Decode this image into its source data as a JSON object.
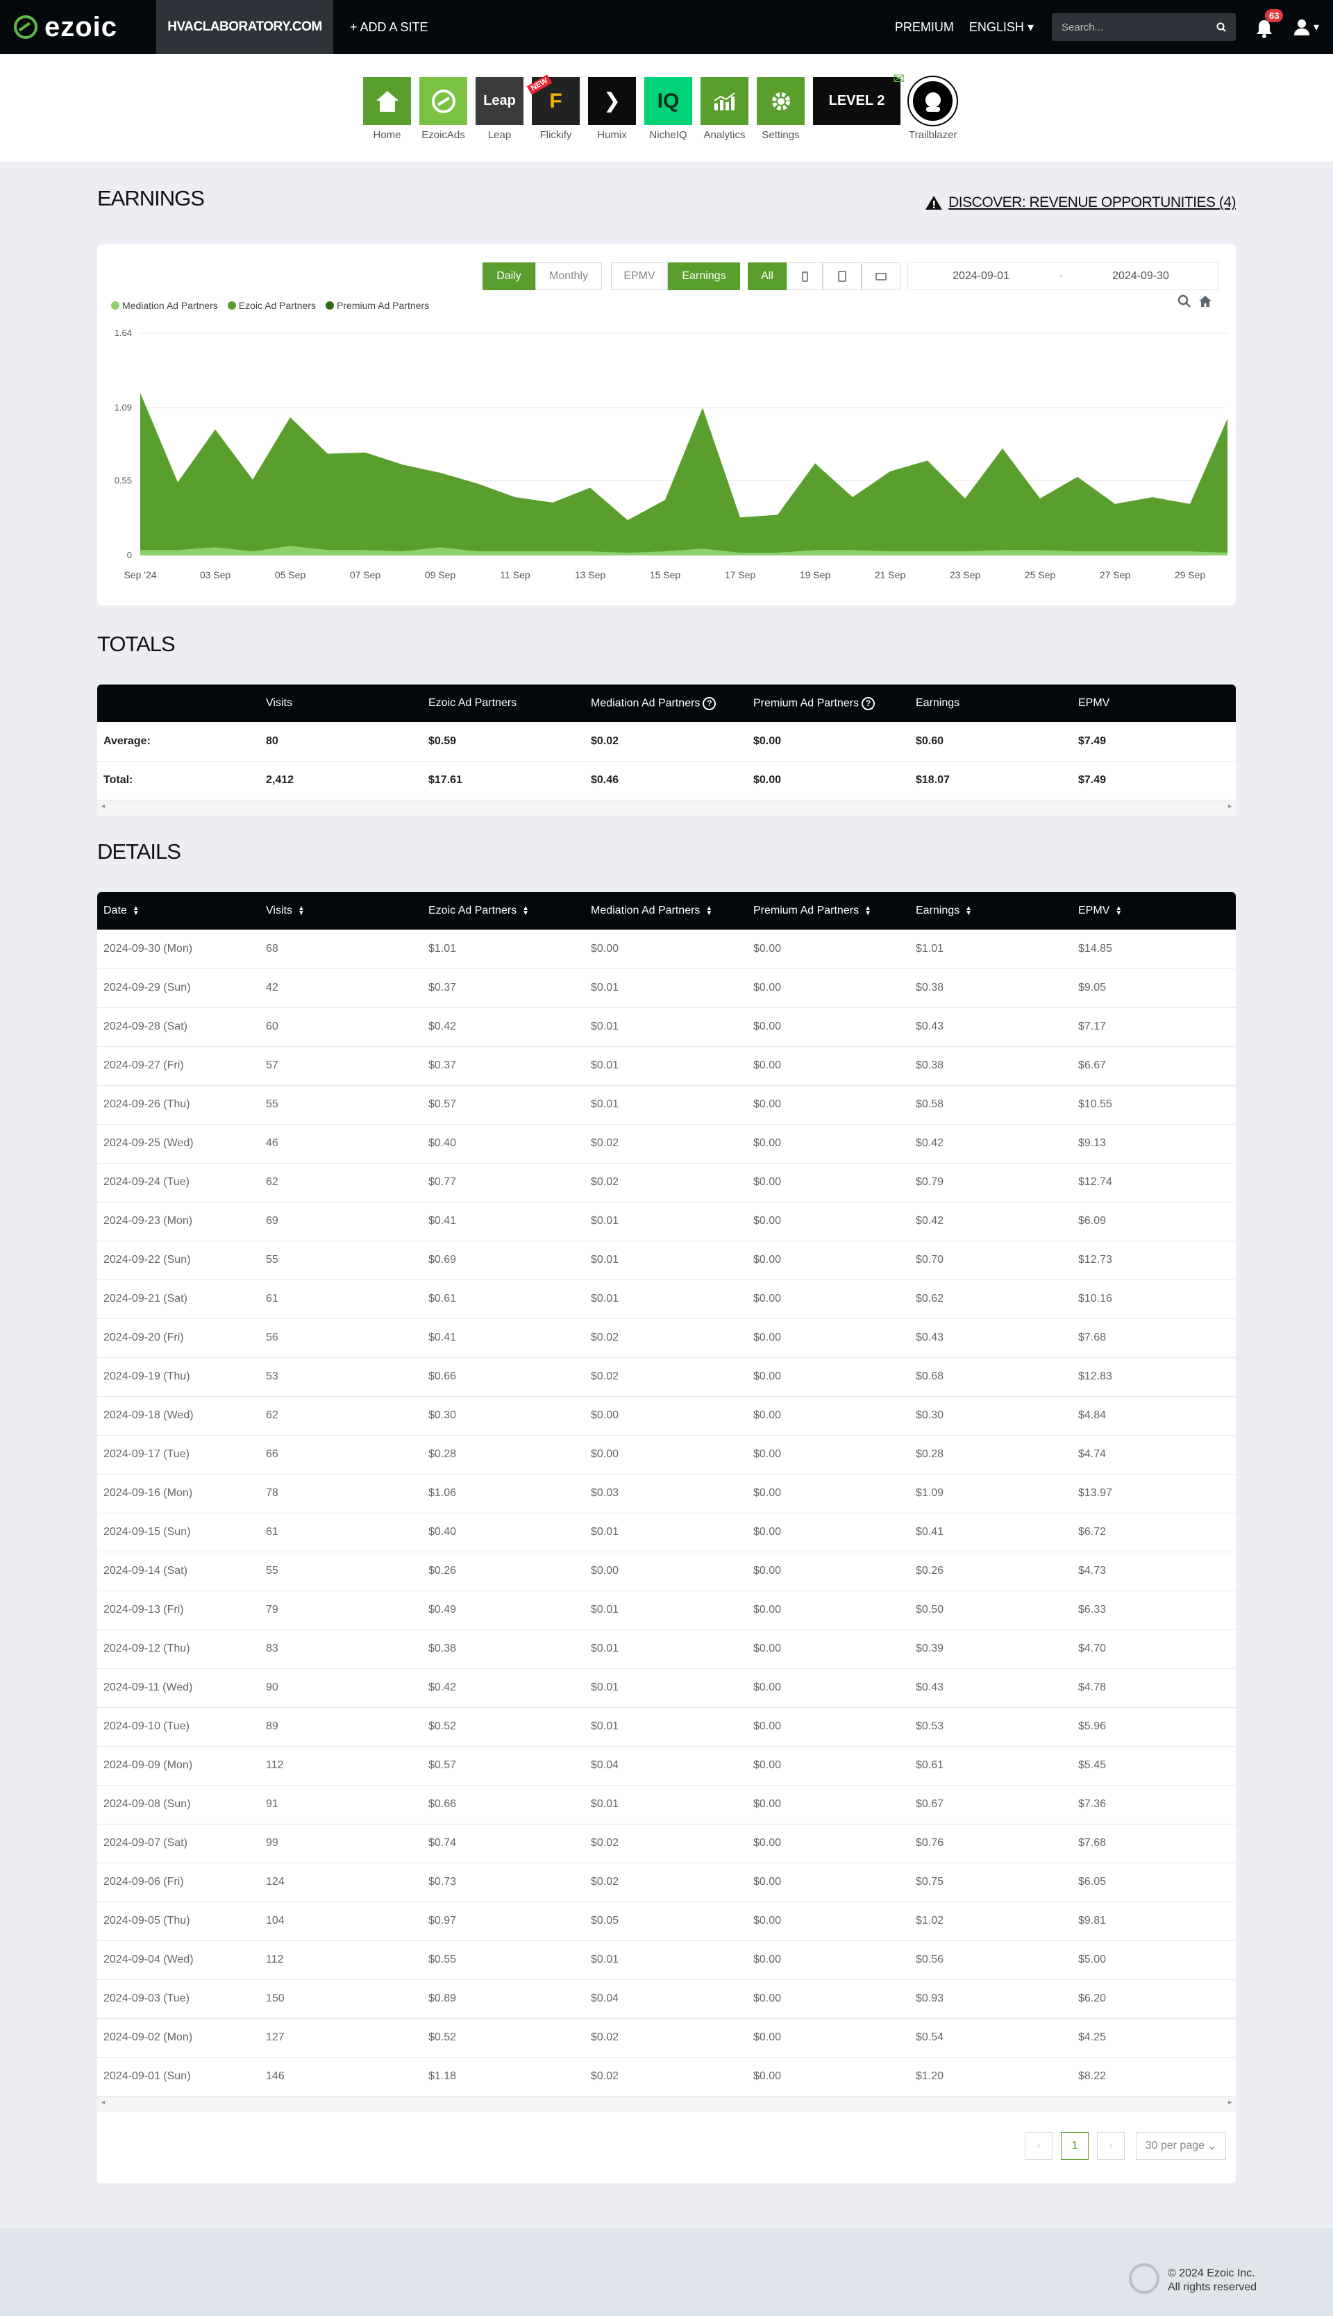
{
  "brand": {
    "name": "ezoic"
  },
  "site": "HVACLABORATORY.COM",
  "add_site": "+ ADD A SITE",
  "nav": {
    "premium": "PREMIUM",
    "language": "ENGLISH",
    "search_placeholder": "Search...",
    "notifications": "63"
  },
  "apps": [
    {
      "label": "Home",
      "color": "#5a9e2d"
    },
    {
      "label": "EzoicAds",
      "color": "#7cc242"
    },
    {
      "label": "Leap",
      "color": "#3b3b3b",
      "glyph": "Leap"
    },
    {
      "label": "Flickify",
      "color": "#222",
      "glyph": "F",
      "badge": "NEW"
    },
    {
      "label": "Humix",
      "color": "#0c0c0c",
      "glyph": "❯"
    },
    {
      "label": "NicheIQ",
      "color": "#00d277",
      "glyph": "IQ"
    },
    {
      "label": "Analytics",
      "color": "#5a9e2d"
    },
    {
      "label": "Settings",
      "color": "#5a9e2d"
    },
    {
      "label": "",
      "color": "#0c0c0c",
      "glyph": "LEVEL 2"
    },
    {
      "label": "Trailblazer",
      "color": "#fff"
    }
  ],
  "earnings": {
    "title": "EARNINGS",
    "discover": "DISCOVER: REVENUE OPPORTUNITIES (4)",
    "period_buttons": [
      "Daily",
      "Monthly"
    ],
    "metric_buttons": [
      "EPMV",
      "Earnings"
    ],
    "device_buttons": [
      "All"
    ],
    "date_from": "2024-09-01",
    "date_sep": "-",
    "date_to": "2024-09-30",
    "legend": [
      {
        "name": "Mediation Ad Partners",
        "color": "#8fcf6b"
      },
      {
        "name": "Ezoic Ad Partners",
        "color": "#5a9e2d"
      },
      {
        "name": "Premium Ad Partners",
        "color": "#2f6b1a"
      }
    ]
  },
  "chart_data": {
    "type": "area",
    "ylim": [
      0,
      1.64
    ],
    "yticks": [
      "1.64",
      "1.09",
      "0.55",
      "0"
    ],
    "xticks": [
      "Sep '24",
      "03 Sep",
      "05 Sep",
      "07 Sep",
      "09 Sep",
      "11 Sep",
      "13 Sep",
      "15 Sep",
      "17 Sep",
      "19 Sep",
      "21 Sep",
      "23 Sep",
      "25 Sep",
      "27 Sep",
      "29 Sep"
    ],
    "x": [
      "2024-09-01",
      "2024-09-02",
      "2024-09-03",
      "2024-09-04",
      "2024-09-05",
      "2024-09-06",
      "2024-09-07",
      "2024-09-08",
      "2024-09-09",
      "2024-09-10",
      "2024-09-11",
      "2024-09-12",
      "2024-09-13",
      "2024-09-14",
      "2024-09-15",
      "2024-09-16",
      "2024-09-17",
      "2024-09-18",
      "2024-09-19",
      "2024-09-20",
      "2024-09-21",
      "2024-09-22",
      "2024-09-23",
      "2024-09-24",
      "2024-09-25",
      "2024-09-26",
      "2024-09-27",
      "2024-09-28",
      "2024-09-29",
      "2024-09-30"
    ],
    "series": [
      {
        "name": "Ezoic Ad Partners",
        "values": [
          1.18,
          0.52,
          0.89,
          0.55,
          0.97,
          0.73,
          0.74,
          0.66,
          0.57,
          0.52,
          0.42,
          0.38,
          0.49,
          0.26,
          0.4,
          1.06,
          0.28,
          0.3,
          0.66,
          0.41,
          0.61,
          0.69,
          0.41,
          0.77,
          0.4,
          0.57,
          0.37,
          0.42,
          0.37,
          1.01
        ]
      },
      {
        "name": "Mediation Ad Partners",
        "values": [
          0.02,
          0.02,
          0.04,
          0.01,
          0.05,
          0.02,
          0.02,
          0.01,
          0.04,
          0.01,
          0.01,
          0.01,
          0.01,
          0.0,
          0.01,
          0.03,
          0.0,
          0.0,
          0.02,
          0.02,
          0.01,
          0.01,
          0.01,
          0.02,
          0.02,
          0.01,
          0.01,
          0.01,
          0.01,
          0.0
        ]
      },
      {
        "name": "Premium Ad Partners",
        "values": [
          0,
          0,
          0,
          0,
          0,
          0,
          0,
          0,
          0,
          0,
          0,
          0,
          0,
          0,
          0,
          0,
          0,
          0,
          0,
          0,
          0,
          0,
          0,
          0,
          0,
          0,
          0,
          0,
          0,
          0
        ]
      }
    ]
  },
  "totals": {
    "title": "TOTALS",
    "headers": [
      "",
      "Visits",
      "Ezoic Ad Partners",
      "Mediation Ad Partners",
      "Premium Ad Partners",
      "Earnings",
      "EPMV"
    ],
    "rows": [
      [
        "Average:",
        "80",
        "$0.59",
        "$0.02",
        "$0.00",
        "$0.60",
        "$7.49"
      ],
      [
        "Total:",
        "2,412",
        "$17.61",
        "$0.46",
        "$0.00",
        "$18.07",
        "$7.49"
      ]
    ]
  },
  "details": {
    "title": "DETAILS",
    "headers": [
      "Date",
      "Visits",
      "Ezoic Ad Partners",
      "Mediation Ad Partners",
      "Premium Ad Partners",
      "Earnings",
      "EPMV"
    ],
    "rows": [
      [
        "2024-09-30 (Mon)",
        "68",
        "$1.01",
        "$0.00",
        "$0.00",
        "$1.01",
        "$14.85"
      ],
      [
        "2024-09-29 (Sun)",
        "42",
        "$0.37",
        "$0.01",
        "$0.00",
        "$0.38",
        "$9.05"
      ],
      [
        "2024-09-28 (Sat)",
        "60",
        "$0.42",
        "$0.01",
        "$0.00",
        "$0.43",
        "$7.17"
      ],
      [
        "2024-09-27 (Fri)",
        "57",
        "$0.37",
        "$0.01",
        "$0.00",
        "$0.38",
        "$6.67"
      ],
      [
        "2024-09-26 (Thu)",
        "55",
        "$0.57",
        "$0.01",
        "$0.00",
        "$0.58",
        "$10.55"
      ],
      [
        "2024-09-25 (Wed)",
        "46",
        "$0.40",
        "$0.02",
        "$0.00",
        "$0.42",
        "$9.13"
      ],
      [
        "2024-09-24 (Tue)",
        "62",
        "$0.77",
        "$0.02",
        "$0.00",
        "$0.79",
        "$12.74"
      ],
      [
        "2024-09-23 (Mon)",
        "69",
        "$0.41",
        "$0.01",
        "$0.00",
        "$0.42",
        "$6.09"
      ],
      [
        "2024-09-22 (Sun)",
        "55",
        "$0.69",
        "$0.01",
        "$0.00",
        "$0.70",
        "$12.73"
      ],
      [
        "2024-09-21 (Sat)",
        "61",
        "$0.61",
        "$0.01",
        "$0.00",
        "$0.62",
        "$10.16"
      ],
      [
        "2024-09-20 (Fri)",
        "56",
        "$0.41",
        "$0.02",
        "$0.00",
        "$0.43",
        "$7.68"
      ],
      [
        "2024-09-19 (Thu)",
        "53",
        "$0.66",
        "$0.02",
        "$0.00",
        "$0.68",
        "$12.83"
      ],
      [
        "2024-09-18 (Wed)",
        "62",
        "$0.30",
        "$0.00",
        "$0.00",
        "$0.30",
        "$4.84"
      ],
      [
        "2024-09-17 (Tue)",
        "66",
        "$0.28",
        "$0.00",
        "$0.00",
        "$0.28",
        "$4.74"
      ],
      [
        "2024-09-16 (Mon)",
        "78",
        "$1.06",
        "$0.03",
        "$0.00",
        "$1.09",
        "$13.97"
      ],
      [
        "2024-09-15 (Sun)",
        "61",
        "$0.40",
        "$0.01",
        "$0.00",
        "$0.41",
        "$6.72"
      ],
      [
        "2024-09-14 (Sat)",
        "55",
        "$0.26",
        "$0.00",
        "$0.00",
        "$0.26",
        "$4.73"
      ],
      [
        "2024-09-13 (Fri)",
        "79",
        "$0.49",
        "$0.01",
        "$0.00",
        "$0.50",
        "$6.33"
      ],
      [
        "2024-09-12 (Thu)",
        "83",
        "$0.38",
        "$0.01",
        "$0.00",
        "$0.39",
        "$4.70"
      ],
      [
        "2024-09-11 (Wed)",
        "90",
        "$0.42",
        "$0.01",
        "$0.00",
        "$0.43",
        "$4.78"
      ],
      [
        "2024-09-10 (Tue)",
        "89",
        "$0.52",
        "$0.01",
        "$0.00",
        "$0.53",
        "$5.96"
      ],
      [
        "2024-09-09 (Mon)",
        "112",
        "$0.57",
        "$0.04",
        "$0.00",
        "$0.61",
        "$5.45"
      ],
      [
        "2024-09-08 (Sun)",
        "91",
        "$0.66",
        "$0.01",
        "$0.00",
        "$0.67",
        "$7.36"
      ],
      [
        "2024-09-07 (Sat)",
        "99",
        "$0.74",
        "$0.02",
        "$0.00",
        "$0.76",
        "$7.68"
      ],
      [
        "2024-09-06 (Fri)",
        "124",
        "$0.73",
        "$0.02",
        "$0.00",
        "$0.75",
        "$6.05"
      ],
      [
        "2024-09-05 (Thu)",
        "104",
        "$0.97",
        "$0.05",
        "$0.00",
        "$1.02",
        "$9.81"
      ],
      [
        "2024-09-04 (Wed)",
        "112",
        "$0.55",
        "$0.01",
        "$0.00",
        "$0.56",
        "$5.00"
      ],
      [
        "2024-09-03 (Tue)",
        "150",
        "$0.89",
        "$0.04",
        "$0.00",
        "$0.93",
        "$6.20"
      ],
      [
        "2024-09-02 (Mon)",
        "127",
        "$0.52",
        "$0.02",
        "$0.00",
        "$0.54",
        "$4.25"
      ],
      [
        "2024-09-01 (Sun)",
        "146",
        "$1.18",
        "$0.02",
        "$0.00",
        "$1.20",
        "$8.22"
      ]
    ],
    "page": "1",
    "per_page": "30 per page"
  },
  "footer": {
    "copyright": "© 2024 Ezoic Inc.",
    "rights": "All rights reserved"
  }
}
